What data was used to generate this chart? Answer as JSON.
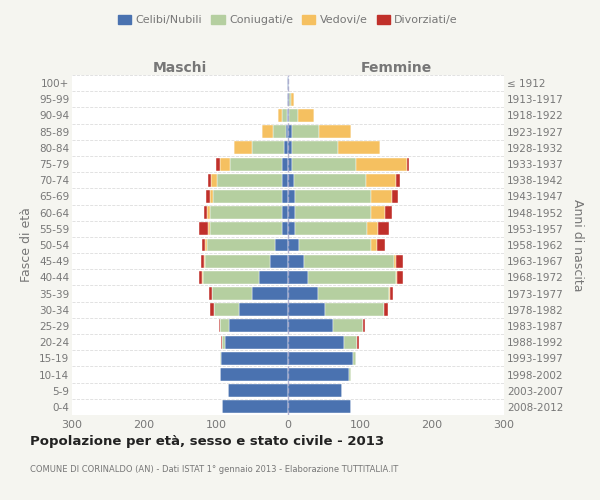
{
  "age_groups": [
    "100+",
    "95-99",
    "90-94",
    "85-89",
    "80-84",
    "75-79",
    "70-74",
    "65-69",
    "60-64",
    "55-59",
    "50-54",
    "45-49",
    "40-44",
    "35-39",
    "30-34",
    "25-29",
    "20-24",
    "15-19",
    "10-14",
    "5-9",
    "0-4"
  ],
  "birth_years": [
    "≤ 1912",
    "1913-1917",
    "1918-1922",
    "1923-1927",
    "1928-1932",
    "1933-1937",
    "1938-1942",
    "1943-1947",
    "1948-1952",
    "1953-1957",
    "1958-1962",
    "1963-1967",
    "1968-1972",
    "1973-1977",
    "1978-1982",
    "1983-1987",
    "1988-1992",
    "1993-1997",
    "1998-2002",
    "2003-2007",
    "2008-2012"
  ],
  "male_celibe": [
    1,
    1,
    1,
    3,
    5,
    8,
    9,
    9,
    9,
    9,
    18,
    25,
    40,
    50,
    68,
    82,
    87,
    93,
    95,
    83,
    92
  ],
  "male_coniugato": [
    0,
    1,
    8,
    18,
    45,
    72,
    90,
    95,
    100,
    100,
    95,
    90,
    78,
    55,
    35,
    12,
    4,
    2,
    0,
    0,
    0
  ],
  "male_vedovo": [
    0,
    0,
    5,
    15,
    25,
    14,
    8,
    5,
    3,
    2,
    2,
    1,
    1,
    0,
    0,
    0,
    0,
    0,
    0,
    0,
    0
  ],
  "male_divorziato": [
    0,
    0,
    0,
    0,
    0,
    6,
    4,
    5,
    5,
    12,
    5,
    5,
    5,
    5,
    5,
    2,
    2,
    0,
    0,
    0,
    0
  ],
  "female_nubile": [
    1,
    2,
    2,
    5,
    5,
    5,
    8,
    10,
    10,
    10,
    15,
    22,
    28,
    42,
    52,
    62,
    78,
    90,
    85,
    75,
    88
  ],
  "female_coniugata": [
    0,
    2,
    12,
    38,
    65,
    90,
    100,
    105,
    105,
    100,
    100,
    125,
    122,
    98,
    82,
    42,
    18,
    5,
    2,
    0,
    0
  ],
  "female_vedova": [
    0,
    4,
    22,
    45,
    58,
    70,
    42,
    30,
    20,
    15,
    8,
    3,
    2,
    1,
    0,
    0,
    0,
    0,
    0,
    0,
    0
  ],
  "female_divorziata": [
    0,
    0,
    0,
    0,
    0,
    3,
    5,
    8,
    10,
    15,
    12,
    10,
    8,
    5,
    5,
    3,
    2,
    0,
    0,
    0,
    0
  ],
  "color_celibe": "#4a72b0",
  "color_coniugato": "#b5cfa0",
  "color_vedovo": "#f5c060",
  "color_divorziato": "#c0302a",
  "bg_color": "#f5f5f0",
  "plot_bg_color": "#ffffff",
  "text_color": "#777777",
  "title_color": "#222222",
  "xlim": 300,
  "title": "Popolazione per età, sesso e stato civile - 2013",
  "subtitle": "COMUNE DI CORINALDO (AN) - Dati ISTAT 1° gennaio 2013 - Elaborazione TUTTITALIA.IT",
  "ylabel_left": "Fasce di età",
  "ylabel_right": "Anni di nascita",
  "label_maschi": "Maschi",
  "label_femmine": "Femmine",
  "legend_labels": [
    "Celibi/Nubili",
    "Coniugati/e",
    "Vedovi/e",
    "Divorziati/e"
  ]
}
